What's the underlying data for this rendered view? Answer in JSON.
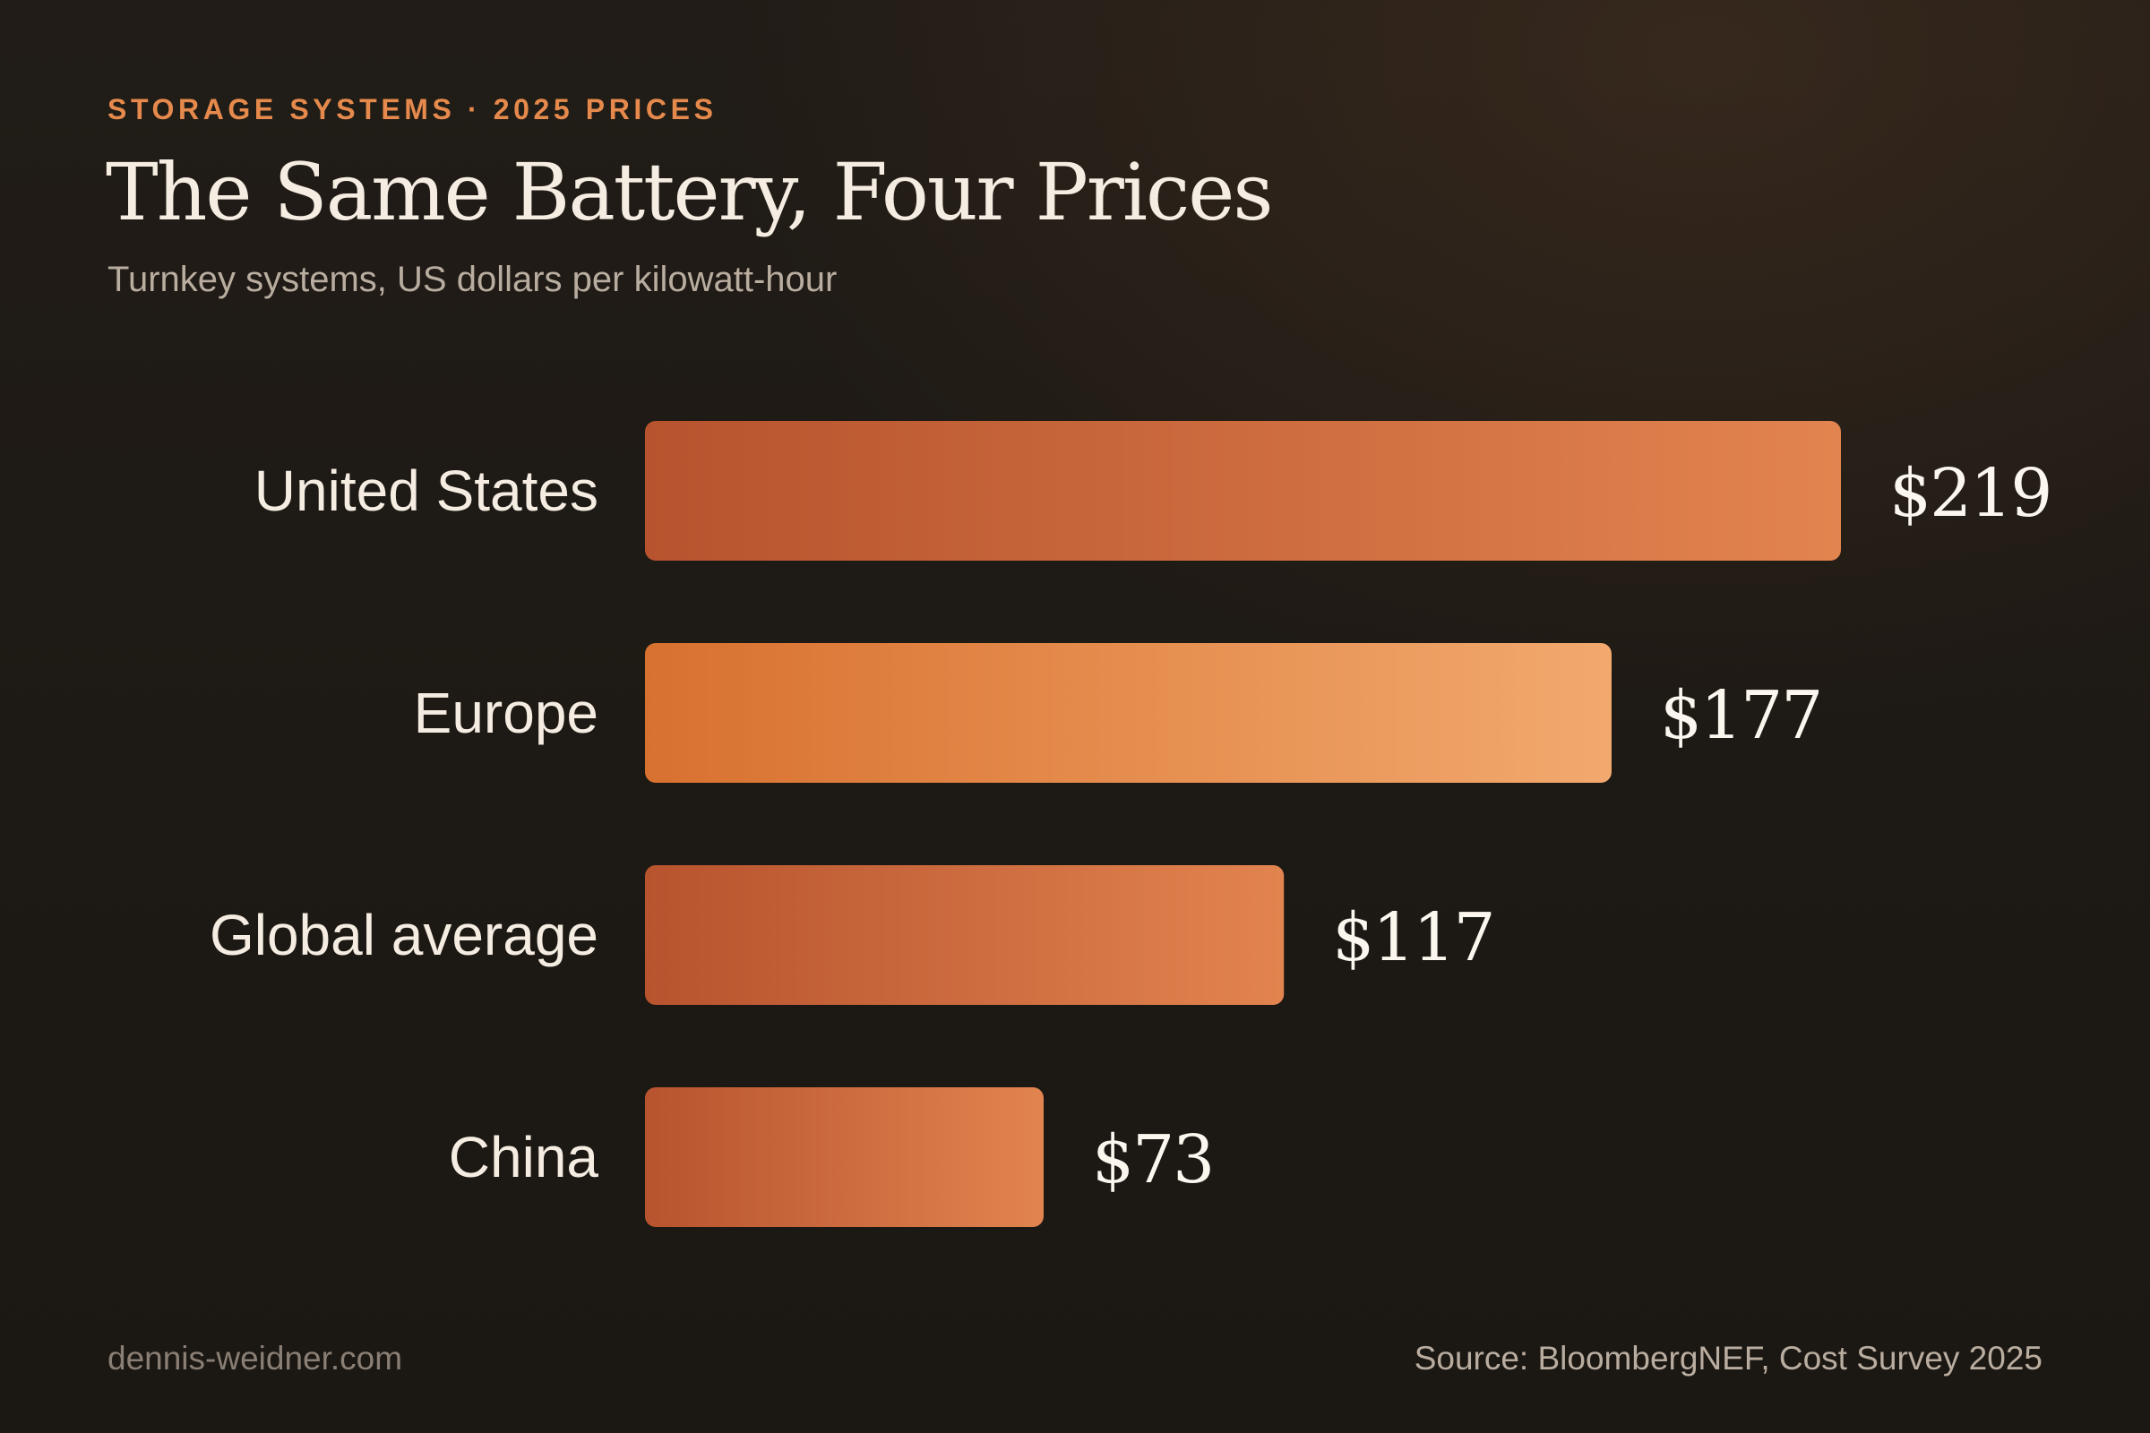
{
  "header": {
    "eyebrow": "STORAGE SYSTEMS · 2025 PRICES",
    "title": "The Same Battery, Four Prices",
    "subtitle": "Turnkey systems, US dollars per kilowatt-hour"
  },
  "footer": {
    "site": "dennis-weidner.com",
    "source": "Source: BloombergNEF, Cost Survey 2025"
  },
  "colors": {
    "accent": "#e58a4c",
    "bar_default_start": "#b7532e",
    "bar_default_end": "#e2844f",
    "bar_highlight_start": "#d8712f",
    "bar_highlight_end": "#f2a96e",
    "label_text": "#f5ede2",
    "value_text": "#fbf6ee"
  },
  "chart_data": {
    "type": "bar",
    "orientation": "horizontal",
    "categories": [
      "United States",
      "Europe",
      "Global average",
      "China"
    ],
    "values": [
      219,
      177,
      117,
      73
    ],
    "value_labels": [
      "$219",
      "$177",
      "$117",
      "$73"
    ],
    "highlight": "Europe",
    "unit": "US dollars per kilowatt-hour",
    "xlim": [
      0,
      219
    ],
    "grid": false,
    "legend": "none"
  }
}
